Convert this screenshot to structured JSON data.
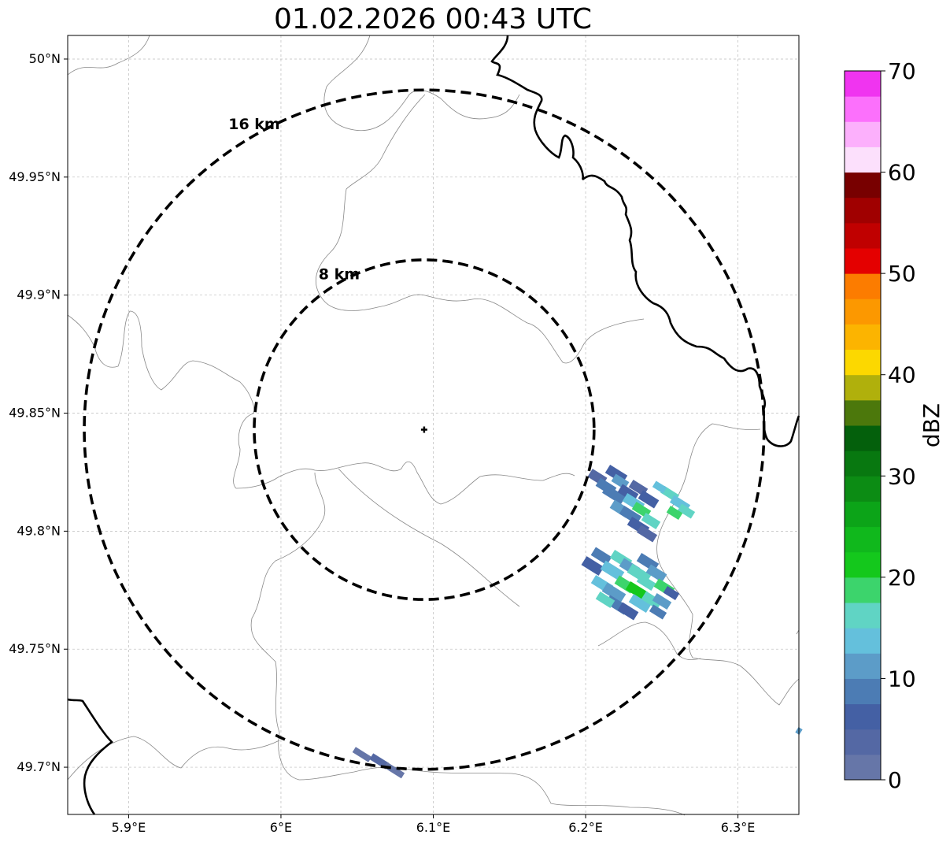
{
  "title": "01.02.2026 00:43 UTC",
  "map": {
    "lon_range": [
      5.86,
      6.34
    ],
    "lat_range": [
      49.68,
      50.01
    ],
    "lon_ticks": [
      {
        "value": 5.9,
        "label": "5.9°E"
      },
      {
        "value": 6.0,
        "label": "6°E"
      },
      {
        "value": 6.1,
        "label": "6.1°E"
      },
      {
        "value": 6.2,
        "label": "6.2°E"
      },
      {
        "value": 6.3,
        "label": "6.3°E"
      }
    ],
    "lat_ticks": [
      {
        "value": 50.0,
        "label": "50°N"
      },
      {
        "value": 49.95,
        "label": "49.95°N"
      },
      {
        "value": 49.9,
        "label": "49.9°N"
      },
      {
        "value": 49.85,
        "label": "49.85°N"
      },
      {
        "value": 49.8,
        "label": "49.8°N"
      },
      {
        "value": 49.75,
        "label": "49.75°N"
      },
      {
        "value": 49.7,
        "label": "49.7°N"
      }
    ],
    "radar_site": {
      "lon": 6.094,
      "lat": 49.843
    },
    "range_rings": [
      {
        "label": "8 km",
        "km": 8
      },
      {
        "label": "16 km",
        "km": 16
      }
    ],
    "grid": true
  },
  "colorbar": {
    "label": "dBZ",
    "min": 0,
    "max": 70,
    "tick_labels": [
      "0",
      "10",
      "20",
      "30",
      "40",
      "50",
      "60",
      "70"
    ],
    "colors": [
      "#6676a8",
      "#5468a4",
      "#4460a4",
      "#4c7cb4",
      "#5c9cc8",
      "#64c0dc",
      "#60d4c4",
      "#3cd46c",
      "#14c81c",
      "#10b81c",
      "#0ca418",
      "#0c8c14",
      "#087810",
      "#04600c",
      "#4c780c",
      "#b0b00c",
      "#fcd800",
      "#fcb400",
      "#fc9800",
      "#fc7c00",
      "#e40000",
      "#c00000",
      "#a00000",
      "#780000",
      "#fce0fc",
      "#fcb0fc",
      "#fc70fc",
      "#f034f0"
    ]
  }
}
